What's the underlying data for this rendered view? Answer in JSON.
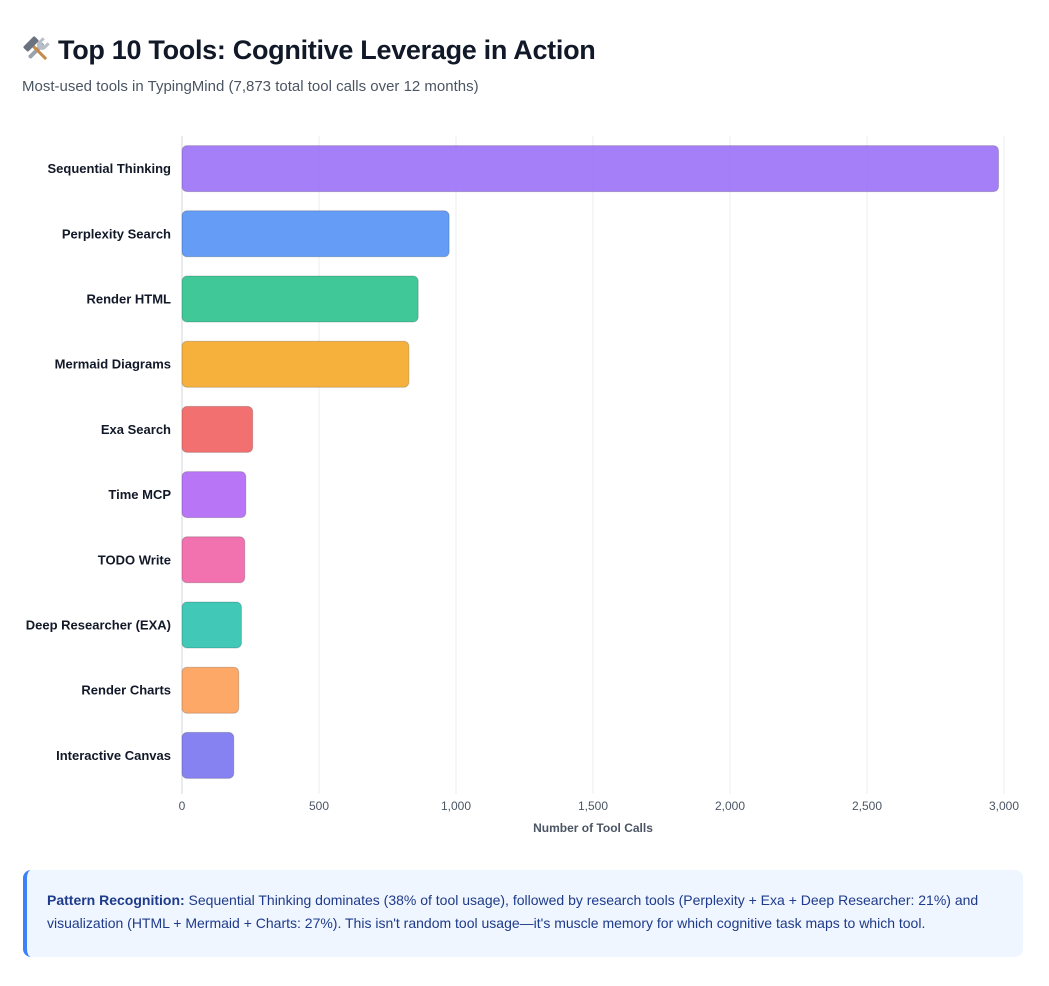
{
  "header": {
    "title": "Top 10 Tools: Cognitive Leverage in Action",
    "subtitle": "Most-used tools in TypingMind (7,873 total tool calls over 12 months)",
    "title_icon": "hammer-and-wrench-icon"
  },
  "chart_data": {
    "type": "bar",
    "orientation": "horizontal",
    "categories": [
      "Sequential Thinking",
      "Perplexity Search",
      "Render HTML",
      "Mermaid Diagrams",
      "Exa Search",
      "Time MCP",
      "TODO Write",
      "Deep Researcher (EXA)",
      "Render Charts",
      "Interactive Canvas"
    ],
    "values": [
      2980,
      975,
      862,
      828,
      258,
      233,
      229,
      217,
      207,
      189
    ],
    "colors": [
      "#a078f8",
      "#5c97f6",
      "#36c593",
      "#f6ad31",
      "#f26868",
      "#b46ff6",
      "#f06aaa",
      "#37c5b3",
      "#fda35f",
      "#817bf1"
    ],
    "xlabel": "Number of Tool Calls",
    "ylabel": "",
    "xlim": [
      0,
      3000
    ],
    "x_ticks": [
      0,
      500,
      1000,
      1500,
      2000,
      2500,
      3000
    ],
    "x_tick_labels": [
      "0",
      "500",
      "1,000",
      "1,500",
      "2,000",
      "2,500",
      "3,000"
    ],
    "grid": true,
    "legend": "none"
  },
  "insight": {
    "heading": "Pattern Recognition:",
    "body": " Sequential Thinking dominates (38% of tool usage), followed by research tools (Perplexity + Exa + Deep Researcher: 21%) and visualization (HTML + Mermaid + Charts: 27%). This isn't random tool usage—it's muscle memory for which cognitive task maps to which tool.",
    "accent_color": "#3b82f6",
    "background_color": "#eff6ff"
  }
}
